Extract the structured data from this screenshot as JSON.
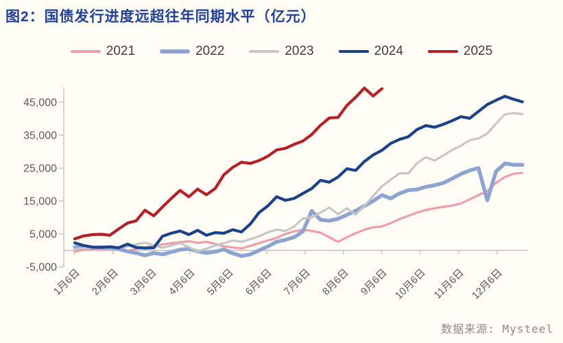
{
  "title": "图2：国债发行进度远超往年同期水平（亿元）",
  "source": "数据来源: Mysteel",
  "colors": {
    "title": "#21409a",
    "axis_text": "#595959",
    "axis_line": "#c3c3c3",
    "legend_text": "#3d3d3d",
    "background": "#fffdf6"
  },
  "chart_data": {
    "type": "line",
    "title": "国债发行进度远超往年同期水平（亿元）",
    "unit": "亿元",
    "xlabel": "",
    "ylabel": "",
    "ylim": [
      -5000,
      50000
    ],
    "grid": false,
    "legend_position": "top",
    "x_note": "weekly cumulative issuance points starting Jan 6; 2025 series ends Sep 6",
    "x_tick_labels": [
      "1月6日",
      "2月6日",
      "3月6日",
      "4月6日",
      "5月6日",
      "6月6日",
      "7月6日",
      "8月6日",
      "9月6日",
      "10月6日",
      "11月6日",
      "12月6日"
    ],
    "y_ticks": [
      -5000,
      5000,
      15000,
      25000,
      35000,
      45000
    ],
    "y_tick_labels": [
      "-5,000",
      "5,000",
      "15,000",
      "25,000",
      "35,000",
      "45,000"
    ],
    "series": [
      {
        "name": "2021",
        "color": "#f29ca7",
        "width": 3.2,
        "values": [
          -400,
          200,
          400,
          300,
          500,
          300,
          -200,
          500,
          800,
          1500,
          1800,
          2200,
          2500,
          2800,
          2300,
          2600,
          2000,
          1200,
          900,
          600,
          1400,
          2200,
          3000,
          3800,
          5000,
          5800,
          6300,
          5900,
          5400,
          4000,
          2600,
          4000,
          5200,
          6300,
          7000,
          7300,
          8300,
          9500,
          10500,
          11500,
          12300,
          12800,
          13200,
          13600,
          14300,
          15500,
          16800,
          18000,
          20500,
          22300,
          23300,
          23500
        ]
      },
      {
        "name": "2022",
        "color": "#8da4d3",
        "width": 5.5,
        "values": [
          1000,
          1300,
          800,
          1000,
          800,
          400,
          -300,
          -800,
          -1500,
          -800,
          -1200,
          -500,
          200,
          500,
          -300,
          -800,
          -400,
          300,
          -900,
          -1700,
          -1200,
          0,
          1200,
          2600,
          3200,
          4000,
          5800,
          12000,
          9300,
          9000,
          9600,
          10800,
          12000,
          13500,
          15000,
          16800,
          15800,
          17300,
          18300,
          18500,
          19300,
          19800,
          20500,
          21800,
          23200,
          24300,
          25000,
          15200,
          24000,
          26400,
          26000,
          26000
        ]
      },
      {
        "name": "2023",
        "color": "#c6c6c6",
        "width": 3.2,
        "values": [
          400,
          600,
          900,
          700,
          1000,
          600,
          1200,
          1800,
          2400,
          1500,
          800,
          1500,
          2200,
          1000,
          -300,
          500,
          1500,
          2200,
          3000,
          2600,
          3400,
          4300,
          5500,
          6300,
          5900,
          7300,
          9700,
          10000,
          11500,
          13000,
          11000,
          12800,
          10900,
          13500,
          16500,
          19500,
          21500,
          23400,
          23400,
          26500,
          28300,
          27300,
          28800,
          30500,
          31800,
          33500,
          34000,
          35500,
          38500,
          41300,
          41700,
          41400
        ]
      },
      {
        "name": "2024",
        "color": "#1a4289",
        "width": 4.2,
        "values": [
          2300,
          1500,
          1000,
          900,
          1100,
          800,
          1900,
          900,
          700,
          800,
          4300,
          5200,
          5900,
          4800,
          6100,
          4600,
          5400,
          5200,
          6300,
          5600,
          8000,
          11500,
          13500,
          16300,
          15200,
          15800,
          17300,
          18800,
          21300,
          20700,
          22300,
          24800,
          24300,
          27000,
          29000,
          30400,
          32500,
          33700,
          34500,
          36700,
          37900,
          37400,
          38300,
          39400,
          40600,
          40100,
          42200,
          44300,
          45600,
          46800,
          45900,
          45100
        ]
      },
      {
        "name": "2025",
        "color": "#b42025",
        "width": 4.2,
        "values": [
          3500,
          4400,
          4800,
          4900,
          4600,
          6500,
          8300,
          9000,
          12200,
          10500,
          13200,
          15800,
          18200,
          16300,
          18600,
          16900,
          18800,
          23000,
          25200,
          26800,
          26400,
          27300,
          28600,
          30500,
          31000,
          32200,
          33200,
          35200,
          38000,
          40200,
          40400,
          44000,
          46500,
          49300,
          46900,
          49100
        ]
      }
    ]
  }
}
